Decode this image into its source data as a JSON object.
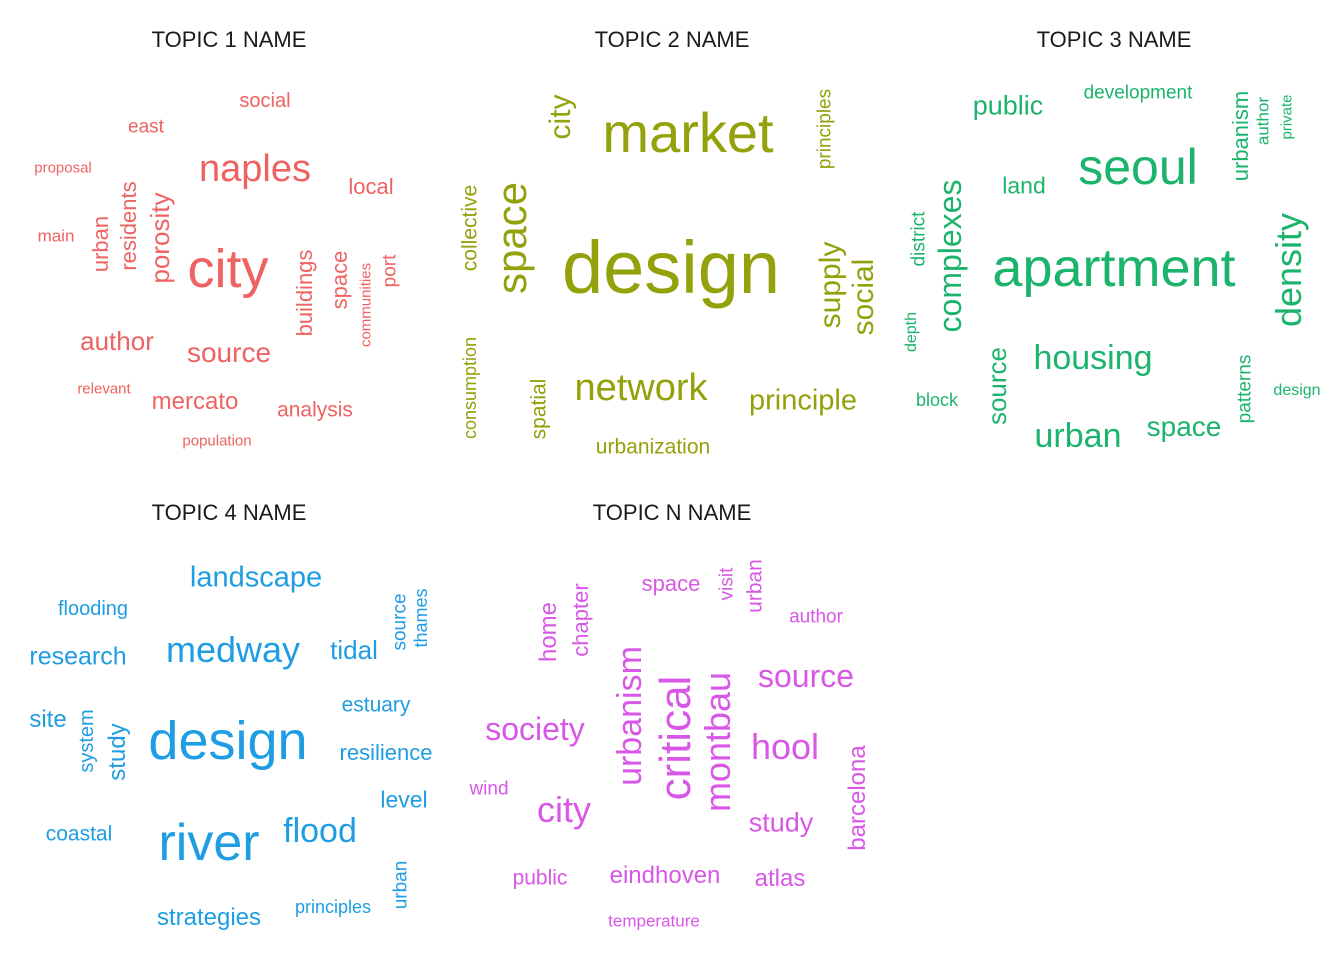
{
  "panels": [
    {
      "title": "TOPIC 1 NAME",
      "color": "#ee6361",
      "words": [
        {
          "text": "social",
          "weight": 1.2
        },
        {
          "text": "east",
          "weight": 1.1
        },
        {
          "text": "naples",
          "weight": 2.2
        },
        {
          "text": "proposal",
          "weight": 0.8
        },
        {
          "text": "local",
          "weight": 1.3
        },
        {
          "text": "main",
          "weight": 0.9
        },
        {
          "text": "urban",
          "weight": 1.3
        },
        {
          "text": "residents",
          "weight": 1.3
        },
        {
          "text": "porosity",
          "weight": 1.5
        },
        {
          "text": "city",
          "weight": 3.0
        },
        {
          "text": "buildings",
          "weight": 1.3
        },
        {
          "text": "space",
          "weight": 1.3
        },
        {
          "text": "communities",
          "weight": 0.8
        },
        {
          "text": "port",
          "weight": 1.1
        },
        {
          "text": "author",
          "weight": 1.5
        },
        {
          "text": "source",
          "weight": 1.6
        },
        {
          "text": "relevant",
          "weight": 0.8
        },
        {
          "text": "mercato",
          "weight": 1.4
        },
        {
          "text": "analysis",
          "weight": 1.2
        },
        {
          "text": "population",
          "weight": 0.8
        }
      ]
    },
    {
      "title": "TOPIC 2 NAME",
      "color": "#93a10a",
      "words": [
        {
          "text": "city",
          "weight": 1.7
        },
        {
          "text": "market",
          "weight": 3.0
        },
        {
          "text": "principles",
          "weight": 1.2
        },
        {
          "text": "collective",
          "weight": 1.3
        },
        {
          "text": "space",
          "weight": 2.2
        },
        {
          "text": "design",
          "weight": 4.0
        },
        {
          "text": "supply",
          "weight": 1.7
        },
        {
          "text": "social",
          "weight": 1.7
        },
        {
          "text": "consumption",
          "weight": 1.1
        },
        {
          "text": "spatial",
          "weight": 1.3
        },
        {
          "text": "network",
          "weight": 2.3
        },
        {
          "text": "principle",
          "weight": 1.7
        },
        {
          "text": "urbanization",
          "weight": 1.3
        }
      ]
    },
    {
      "title": "TOPIC 3 NAME",
      "color": "#1cb46d",
      "words": [
        {
          "text": "public",
          "weight": 1.6
        },
        {
          "text": "development",
          "weight": 1.1
        },
        {
          "text": "urbanism",
          "weight": 1.3
        },
        {
          "text": "author",
          "weight": 1.1
        },
        {
          "text": "private",
          "weight": 0.9
        },
        {
          "text": "seoul",
          "weight": 3.0
        },
        {
          "text": "land",
          "weight": 1.4
        },
        {
          "text": "district",
          "weight": 1.1
        },
        {
          "text": "complexes",
          "weight": 2.0
        },
        {
          "text": "apartment",
          "weight": 3.2
        },
        {
          "text": "density",
          "weight": 2.2
        },
        {
          "text": "depth",
          "weight": 1.0
        },
        {
          "text": "housing",
          "weight": 2.1
        },
        {
          "text": "source",
          "weight": 1.6
        },
        {
          "text": "block",
          "weight": 1.1
        },
        {
          "text": "patterns",
          "weight": 1.1
        },
        {
          "text": "design",
          "weight": 1.0
        },
        {
          "text": "urban",
          "weight": 2.1
        },
        {
          "text": "space",
          "weight": 1.7
        }
      ]
    },
    {
      "title": "TOPIC 4 NAME",
      "color": "#1f9de3",
      "words": [
        {
          "text": "landscape",
          "weight": 1.8
        },
        {
          "text": "flooding",
          "weight": 1.2
        },
        {
          "text": "source",
          "weight": 1.2
        },
        {
          "text": "thames",
          "weight": 1.1
        },
        {
          "text": "research",
          "weight": 1.6
        },
        {
          "text": "medway",
          "weight": 2.2
        },
        {
          "text": "tidal",
          "weight": 1.5
        },
        {
          "text": "estuary",
          "weight": 1.3
        },
        {
          "text": "site",
          "weight": 1.5
        },
        {
          "text": "system",
          "weight": 1.2
        },
        {
          "text": "study",
          "weight": 1.4
        },
        {
          "text": "design",
          "weight": 3.0
        },
        {
          "text": "resilience",
          "weight": 1.4
        },
        {
          "text": "level",
          "weight": 1.4
        },
        {
          "text": "coastal",
          "weight": 1.3
        },
        {
          "text": "river",
          "weight": 3.0
        },
        {
          "text": "flood",
          "weight": 2.1
        },
        {
          "text": "urban",
          "weight": 1.2
        },
        {
          "text": "strategies",
          "weight": 1.5
        },
        {
          "text": "principles",
          "weight": 1.2
        }
      ]
    },
    {
      "title": "TOPIC N NAME",
      "color": "#d857e6",
      "words": [
        {
          "text": "space",
          "weight": 1.4
        },
        {
          "text": "visit",
          "weight": 1.2
        },
        {
          "text": "urban",
          "weight": 1.3
        },
        {
          "text": "author",
          "weight": 1.2
        },
        {
          "text": "home",
          "weight": 1.5
        },
        {
          "text": "chapter",
          "weight": 1.4
        },
        {
          "text": "urbanism",
          "weight": 2.0
        },
        {
          "text": "critical",
          "weight": 2.8
        },
        {
          "text": "montbau",
          "weight": 2.4
        },
        {
          "text": "source",
          "weight": 2.0
        },
        {
          "text": "society",
          "weight": 2.0
        },
        {
          "text": "hool",
          "weight": 2.2
        },
        {
          "text": "wind",
          "weight": 1.2
        },
        {
          "text": "city",
          "weight": 2.2
        },
        {
          "text": "study",
          "weight": 1.7
        },
        {
          "text": "barcelona",
          "weight": 1.5
        },
        {
          "text": "public",
          "weight": 1.3
        },
        {
          "text": "eindhoven",
          "weight": 1.6
        },
        {
          "text": "atlas",
          "weight": 1.5
        },
        {
          "text": "temperature",
          "weight": 1.0
        }
      ]
    }
  ]
}
